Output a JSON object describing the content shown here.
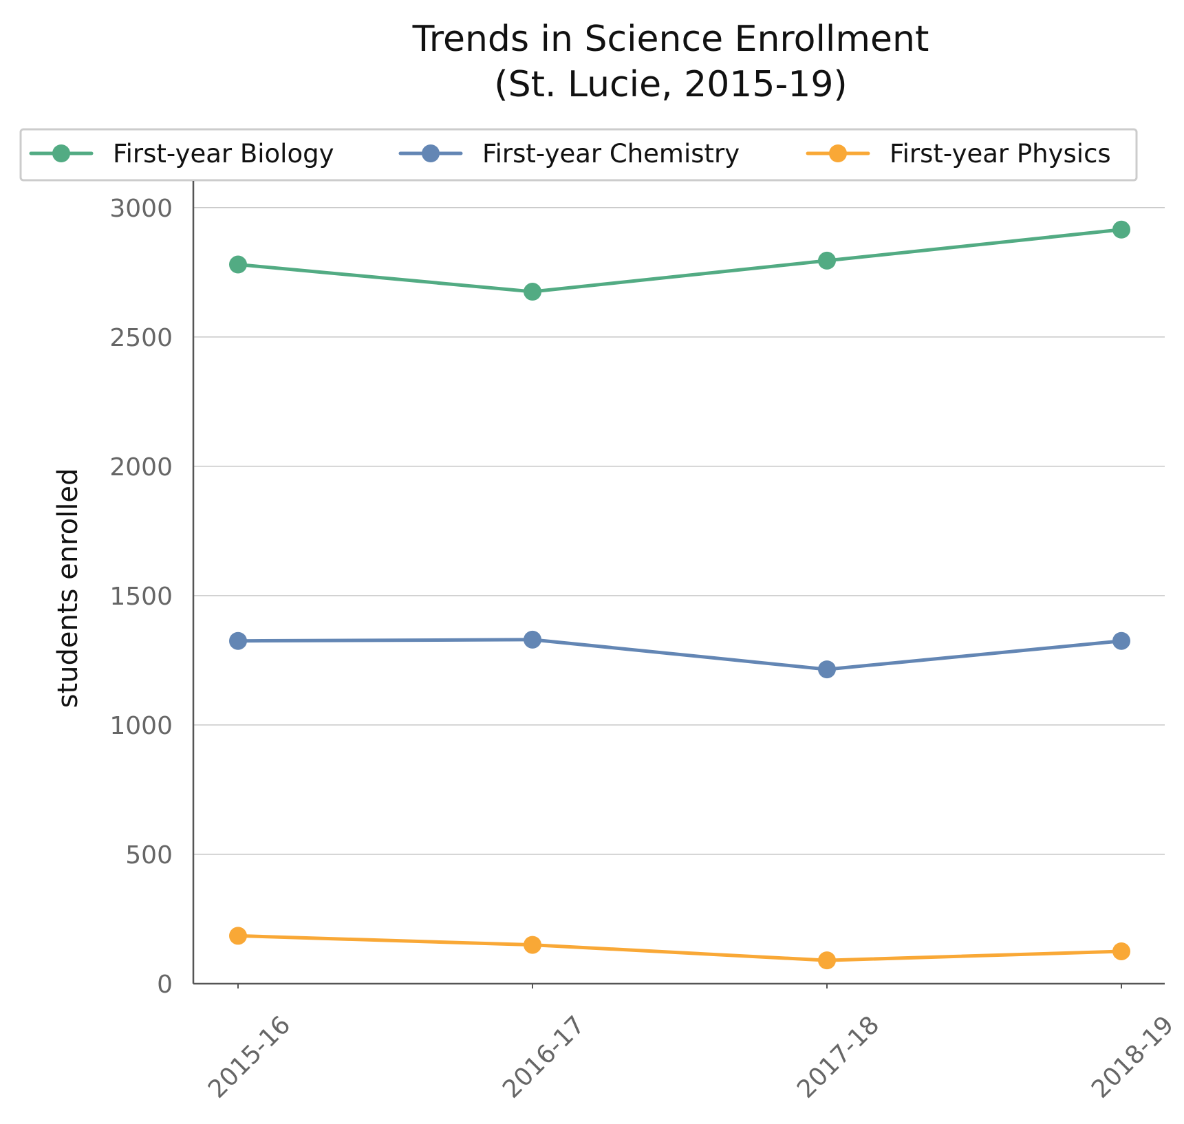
{
  "chart_data": {
    "type": "line",
    "title": "Trends in Science Enrollment",
    "subtitle": "(St. Lucie, 2015-19)",
    "xlabel": "",
    "ylabel": "students enrolled",
    "categories": [
      "2015-16",
      "2016-17",
      "2017-18",
      "2018-19"
    ],
    "y_ticks": [
      "0",
      "500",
      "1000",
      "1500",
      "2000",
      "2500",
      "3000"
    ],
    "ylim": [
      0,
      3050
    ],
    "grid": "horizontal",
    "legend_position": "top",
    "series": [
      {
        "name": "First-year Biology",
        "color": "#52ab83",
        "values": [
          2780,
          2675,
          2795,
          2915
        ]
      },
      {
        "name": "First-year Chemistry",
        "color": "#6386b4",
        "values": [
          1325,
          1330,
          1215,
          1325
        ]
      },
      {
        "name": "First-year Physics",
        "color": "#f9a836",
        "values": [
          185,
          150,
          90,
          125
        ]
      }
    ]
  }
}
